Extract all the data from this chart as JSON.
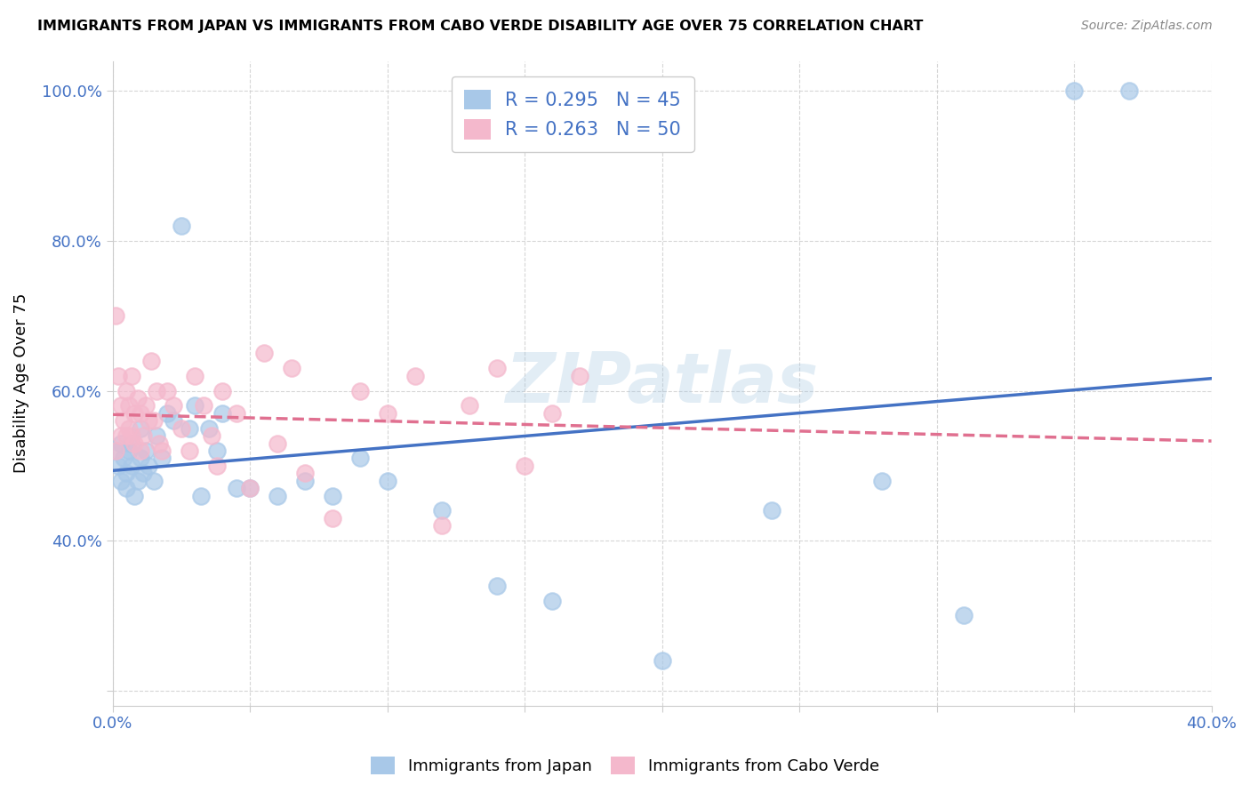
{
  "title": "IMMIGRANTS FROM JAPAN VS IMMIGRANTS FROM CABO VERDE DISABILITY AGE OVER 75 CORRELATION CHART",
  "source": "Source: ZipAtlas.com",
  "ylabel": "Disability Age Over 75",
  "xlim": [
    0.0,
    0.4
  ],
  "ylim": [
    0.18,
    1.04
  ],
  "xticks": [
    0.0,
    0.05,
    0.1,
    0.15,
    0.2,
    0.25,
    0.3,
    0.35,
    0.4
  ],
  "xticklabels": [
    "0.0%",
    "",
    "",
    "",
    "",
    "",
    "",
    "",
    "40.0%"
  ],
  "yticks": [
    0.2,
    0.4,
    0.6,
    0.8,
    1.0
  ],
  "yticklabels": [
    "",
    "40.0%",
    "60.0%",
    "80.0%",
    "100.0%"
  ],
  "japan_color": "#a8c8e8",
  "japan_line_color": "#4472c4",
  "cabo_color": "#f4b8cc",
  "cabo_line_color": "#e07090",
  "japan_R": 0.295,
  "japan_N": 45,
  "cabo_R": 0.263,
  "cabo_N": 50,
  "legend_R_color": "#4472c4",
  "watermark": "ZIPatlas",
  "japan_scatter_x": [
    0.001,
    0.002,
    0.003,
    0.003,
    0.004,
    0.005,
    0.005,
    0.006,
    0.007,
    0.007,
    0.008,
    0.009,
    0.01,
    0.01,
    0.011,
    0.012,
    0.013,
    0.015,
    0.016,
    0.018,
    0.02,
    0.022,
    0.025,
    0.028,
    0.03,
    0.032,
    0.035,
    0.038,
    0.04,
    0.045,
    0.05,
    0.06,
    0.07,
    0.08,
    0.09,
    0.1,
    0.12,
    0.14,
    0.16,
    0.2,
    0.24,
    0.28,
    0.31,
    0.35,
    0.37
  ],
  "japan_scatter_y": [
    0.52,
    0.5,
    0.48,
    0.53,
    0.51,
    0.49,
    0.47,
    0.52,
    0.5,
    0.53,
    0.46,
    0.48,
    0.51,
    0.55,
    0.49,
    0.52,
    0.5,
    0.48,
    0.54,
    0.51,
    0.57,
    0.56,
    0.82,
    0.55,
    0.58,
    0.46,
    0.55,
    0.52,
    0.57,
    0.47,
    0.47,
    0.46,
    0.48,
    0.46,
    0.51,
    0.48,
    0.44,
    0.34,
    0.32,
    0.24,
    0.44,
    0.48,
    0.3,
    1.0,
    1.0
  ],
  "cabo_scatter_x": [
    0.001,
    0.001,
    0.002,
    0.003,
    0.003,
    0.004,
    0.005,
    0.005,
    0.006,
    0.006,
    0.007,
    0.007,
    0.008,
    0.008,
    0.009,
    0.01,
    0.01,
    0.011,
    0.012,
    0.013,
    0.014,
    0.015,
    0.016,
    0.017,
    0.018,
    0.02,
    0.022,
    0.025,
    0.028,
    0.03,
    0.033,
    0.036,
    0.038,
    0.04,
    0.045,
    0.05,
    0.055,
    0.06,
    0.065,
    0.07,
    0.08,
    0.09,
    0.1,
    0.11,
    0.12,
    0.13,
    0.14,
    0.15,
    0.16,
    0.17
  ],
  "cabo_scatter_y": [
    0.7,
    0.52,
    0.62,
    0.54,
    0.58,
    0.56,
    0.6,
    0.54,
    0.58,
    0.55,
    0.62,
    0.54,
    0.57,
    0.53,
    0.59,
    0.52,
    0.57,
    0.54,
    0.58,
    0.56,
    0.64,
    0.56,
    0.6,
    0.53,
    0.52,
    0.6,
    0.58,
    0.55,
    0.52,
    0.62,
    0.58,
    0.54,
    0.5,
    0.6,
    0.57,
    0.47,
    0.65,
    0.53,
    0.63,
    0.49,
    0.43,
    0.6,
    0.57,
    0.62,
    0.42,
    0.58,
    0.63,
    0.5,
    0.57,
    0.62
  ],
  "grid_color": "#cccccc",
  "grid_linestyle": "--"
}
